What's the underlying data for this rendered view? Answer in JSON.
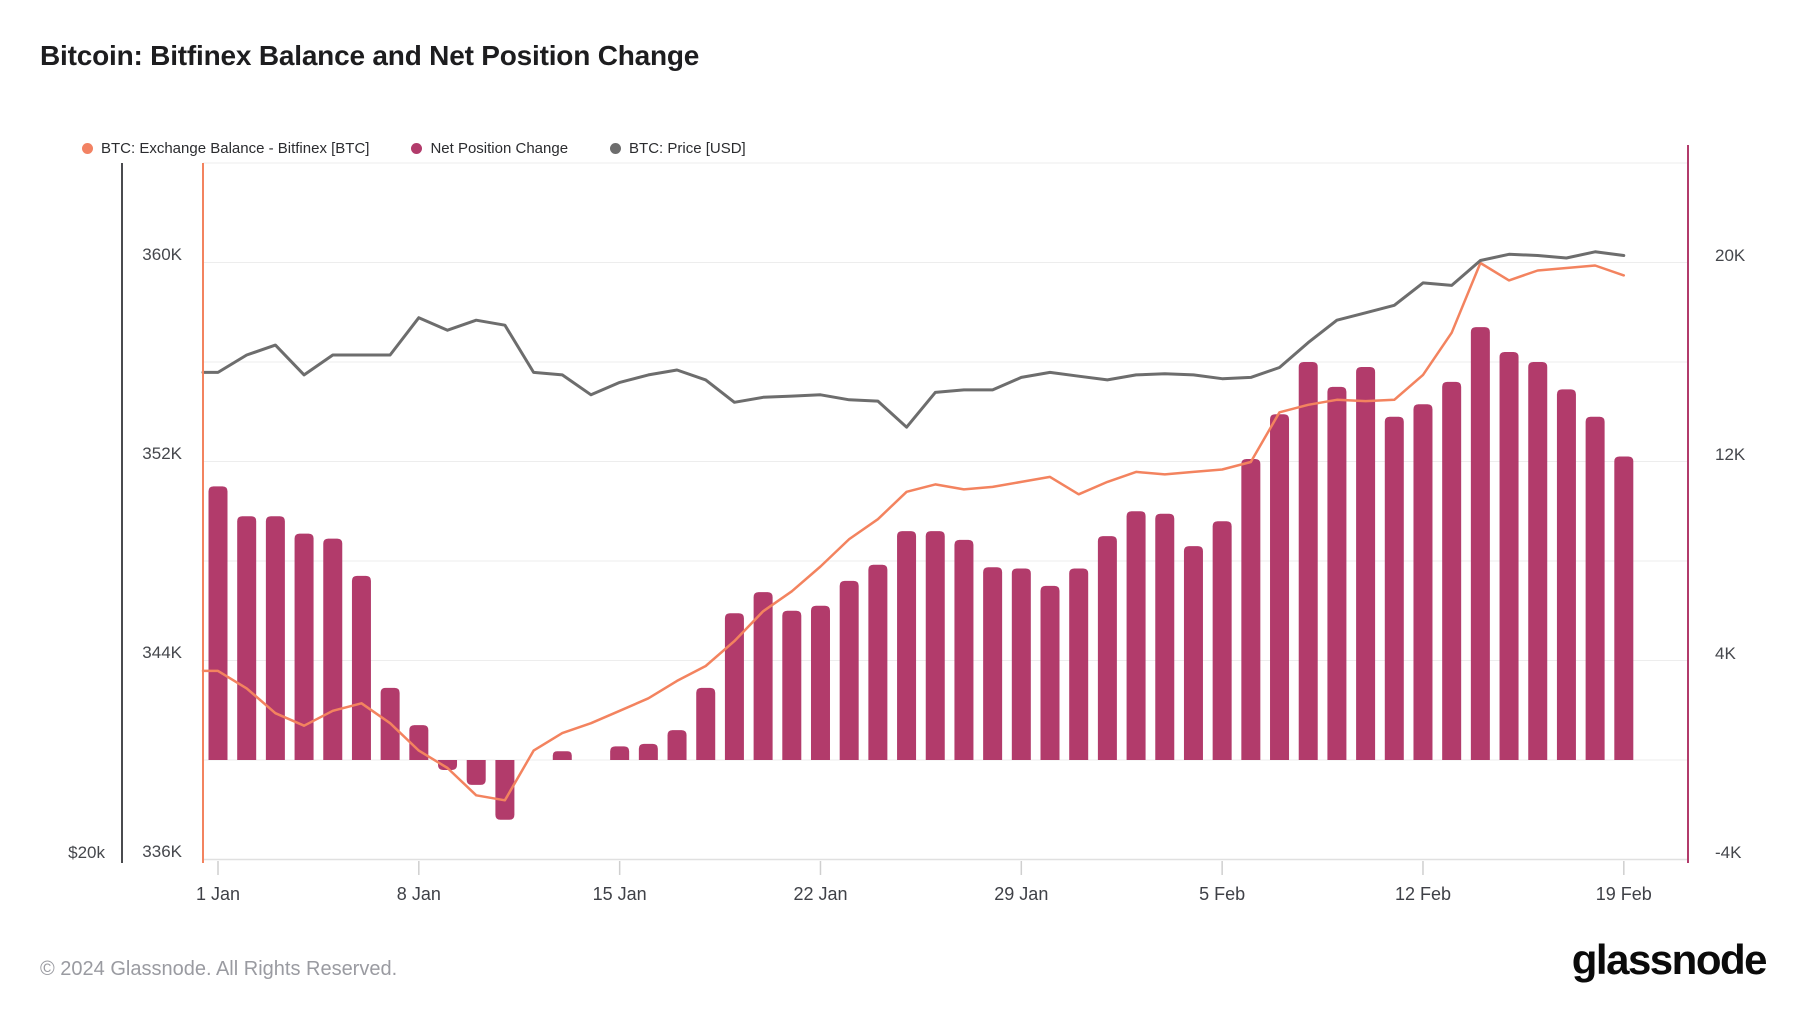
{
  "header": {
    "title": "Bitcoin: Bitfinex Balance and Net Position Change"
  },
  "legend": [
    {
      "id": "balance",
      "label": "BTC: Exchange Balance - Bitfinex [BTC]",
      "color": "#f28263"
    },
    {
      "id": "net",
      "label": "Net Position Change",
      "color": "#b23b6b"
    },
    {
      "id": "price",
      "label": "BTC: Price [USD]",
      "color": "#6d6d6d"
    }
  ],
  "colors": {
    "bar": "#b23b6b",
    "balance_line": "#f3835f",
    "price_line": "#6d6d6d",
    "grid": "#ededed",
    "axis_bottom": "#e0e0e0",
    "tick": "#cfcfcf",
    "price_axis_line": "#4a4b4f",
    "left_border": "#f3835f",
    "right_border": "#b23b6b"
  },
  "axes": {
    "balance_left": {
      "labels": [
        {
          "text": "360K",
          "value": 360
        },
        {
          "text": "352K",
          "value": 352
        },
        {
          "text": "344K",
          "value": 344
        },
        {
          "text": "336K",
          "value": 336
        }
      ]
    },
    "net_right": {
      "labels": [
        {
          "text": "20K",
          "value": 20
        },
        {
          "text": "12K",
          "value": 12
        },
        {
          "text": "4K",
          "value": 4
        },
        {
          "text": "-4K",
          "value": -4
        }
      ]
    },
    "price_left": {
      "labels": [
        {
          "text": "$20k",
          "value": 20
        }
      ]
    },
    "x": {
      "labels": [
        {
          "text": "1 Jan",
          "day": 0
        },
        {
          "text": "8 Jan",
          "day": 7
        },
        {
          "text": "15 Jan",
          "day": 14
        },
        {
          "text": "22 Jan",
          "day": 21
        },
        {
          "text": "29 Jan",
          "day": 28
        },
        {
          "text": "5 Feb",
          "day": 35
        },
        {
          "text": "12 Feb",
          "day": 42
        },
        {
          "text": "19 Feb",
          "day": 49
        }
      ]
    }
  },
  "chart_data": {
    "type": "bar+line",
    "title": "Bitcoin: Bitfinex Balance and Net Position Change",
    "x_range": [
      "1 Jan 2024",
      "19 Feb 2024"
    ],
    "grid": "horizontal, every 4K",
    "legend_position": "top-left",
    "ylim_left_balance_kBTC": [
      336,
      364
    ],
    "ylim_right_net_kBTC": [
      -4,
      24
    ],
    "price_axis_visible_label": "$20k at bottom",
    "categories": [
      "1 Jan",
      "2 Jan",
      "3 Jan",
      "4 Jan",
      "5 Jan",
      "6 Jan",
      "7 Jan",
      "8 Jan",
      "9 Jan",
      "10 Jan",
      "11 Jan",
      "12 Jan",
      "13 Jan",
      "14 Jan",
      "15 Jan",
      "16 Jan",
      "17 Jan",
      "18 Jan",
      "19 Jan",
      "20 Jan",
      "21 Jan",
      "22 Jan",
      "23 Jan",
      "24 Jan",
      "25 Jan",
      "26 Jan",
      "27 Jan",
      "28 Jan",
      "29 Jan",
      "30 Jan",
      "31 Jan",
      "1 Feb",
      "2 Feb",
      "3 Feb",
      "4 Feb",
      "5 Feb",
      "6 Feb",
      "7 Feb",
      "8 Feb",
      "9 Feb",
      "10 Feb",
      "11 Feb",
      "12 Feb",
      "13 Feb",
      "14 Feb",
      "15 Feb",
      "16 Feb",
      "17 Feb",
      "18 Feb",
      "19 Feb"
    ],
    "series": [
      {
        "name": "Net Position Change",
        "type": "bar",
        "axis": "right",
        "unit": "thousand BTC",
        "values": [
          11.0,
          9.8,
          9.8,
          9.1,
          8.9,
          7.4,
          2.9,
          1.4,
          -0.4,
          -1.0,
          -2.4,
          0,
          0.35,
          0,
          0.55,
          0.65,
          1.2,
          2.9,
          5.9,
          6.75,
          6.0,
          6.2,
          7.2,
          7.85,
          9.2,
          9.2,
          8.85,
          7.75,
          7.7,
          7.0,
          7.7,
          9.0,
          10.0,
          9.9,
          8.6,
          9.6,
          12.1,
          13.9,
          16.0,
          15.0,
          15.8,
          13.8,
          14.3,
          15.2,
          17.4,
          16.4,
          16.0,
          14.9,
          13.8,
          12.2
        ]
      },
      {
        "name": "BTC: Exchange Balance - Bitfinex [BTC]",
        "type": "line",
        "axis": "left",
        "unit": "thousand BTC",
        "values": [
          343.6,
          342.9,
          341.9,
          341.4,
          342.0,
          342.3,
          341.5,
          340.4,
          339.7,
          338.6,
          338.4,
          340.4,
          341.1,
          341.5,
          342.0,
          342.5,
          343.2,
          343.8,
          344.8,
          346.0,
          346.8,
          347.8,
          348.9,
          349.7,
          350.8,
          351.1,
          350.9,
          351.0,
          351.2,
          351.4,
          350.7,
          351.2,
          351.6,
          351.5,
          351.6,
          351.7,
          352.0,
          354.0,
          354.3,
          354.5,
          354.45,
          354.5,
          355.5,
          357.2,
          360.0,
          359.3,
          359.7,
          359.8,
          359.9,
          359.5
        ]
      },
      {
        "name": "BTC: Price [USD]",
        "type": "line",
        "axis": "price",
        "unit": "thousand USD (approx)",
        "values": [
          39.6,
          40.3,
          40.7,
          39.5,
          40.3,
          40.3,
          40.3,
          41.8,
          41.3,
          41.7,
          41.5,
          39.6,
          39.5,
          38.7,
          39.2,
          39.5,
          39.7,
          39.3,
          38.4,
          38.6,
          38.65,
          38.7,
          38.5,
          38.45,
          37.4,
          38.8,
          38.9,
          38.9,
          39.4,
          39.6,
          39.45,
          39.3,
          39.5,
          39.55,
          39.5,
          39.35,
          39.4,
          39.8,
          40.8,
          41.7,
          42.0,
          42.3,
          43.2,
          43.1,
          44.1,
          44.35,
          44.3,
          44.2,
          44.45,
          44.3
        ]
      }
    ]
  },
  "footer": {
    "copyright": "© 2024 Glassnode. All Rights Reserved.",
    "logo": "glassnode"
  }
}
